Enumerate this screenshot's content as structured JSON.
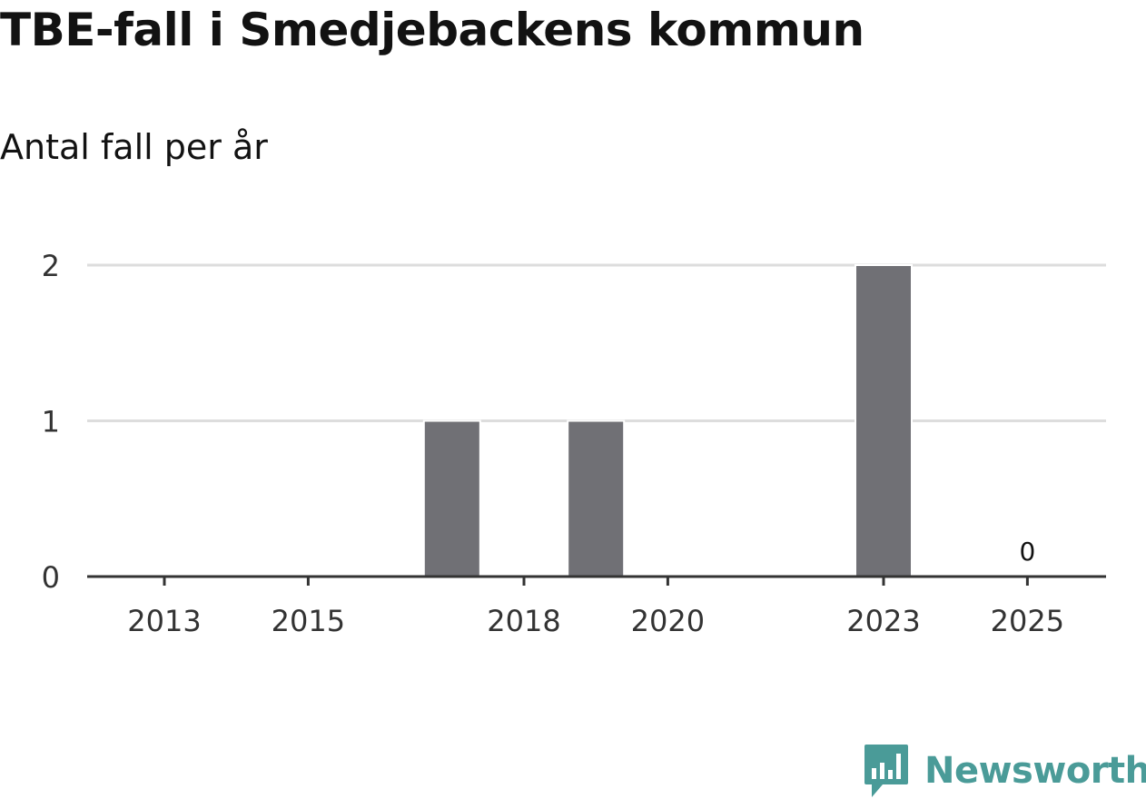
{
  "header": {
    "title": "TBE-fall i Smedjebackens kommun",
    "subtitle": "Antal fall per år"
  },
  "logo": {
    "text": "Newsworthy",
    "icon": "newsworthy-logo-icon",
    "color": "#4a9b98"
  },
  "colors": {
    "bar": "#707075",
    "grid": "#dddddd",
    "axis": "#333333"
  },
  "chart_data": {
    "type": "bar",
    "categories": [
      "2013",
      "2014",
      "2015",
      "2016",
      "2017",
      "2018",
      "2019",
      "2020",
      "2021",
      "2022",
      "2023",
      "2024",
      "2025"
    ],
    "values": [
      0,
      0,
      0,
      0,
      1,
      0,
      1,
      0,
      0,
      0,
      2,
      0,
      0
    ],
    "xticks": [
      "2013",
      "2015",
      "2018",
      "2020",
      "2023",
      "2025"
    ],
    "yticks": [
      0,
      1,
      2
    ],
    "ylim": [
      0,
      2
    ],
    "data_labels": [
      {
        "category": "2025",
        "text": "0"
      }
    ],
    "title": "TBE-fall i Smedjebackens kommun",
    "subtitle": "Antal fall per år",
    "xlabel": "",
    "ylabel": "",
    "grid": true
  }
}
